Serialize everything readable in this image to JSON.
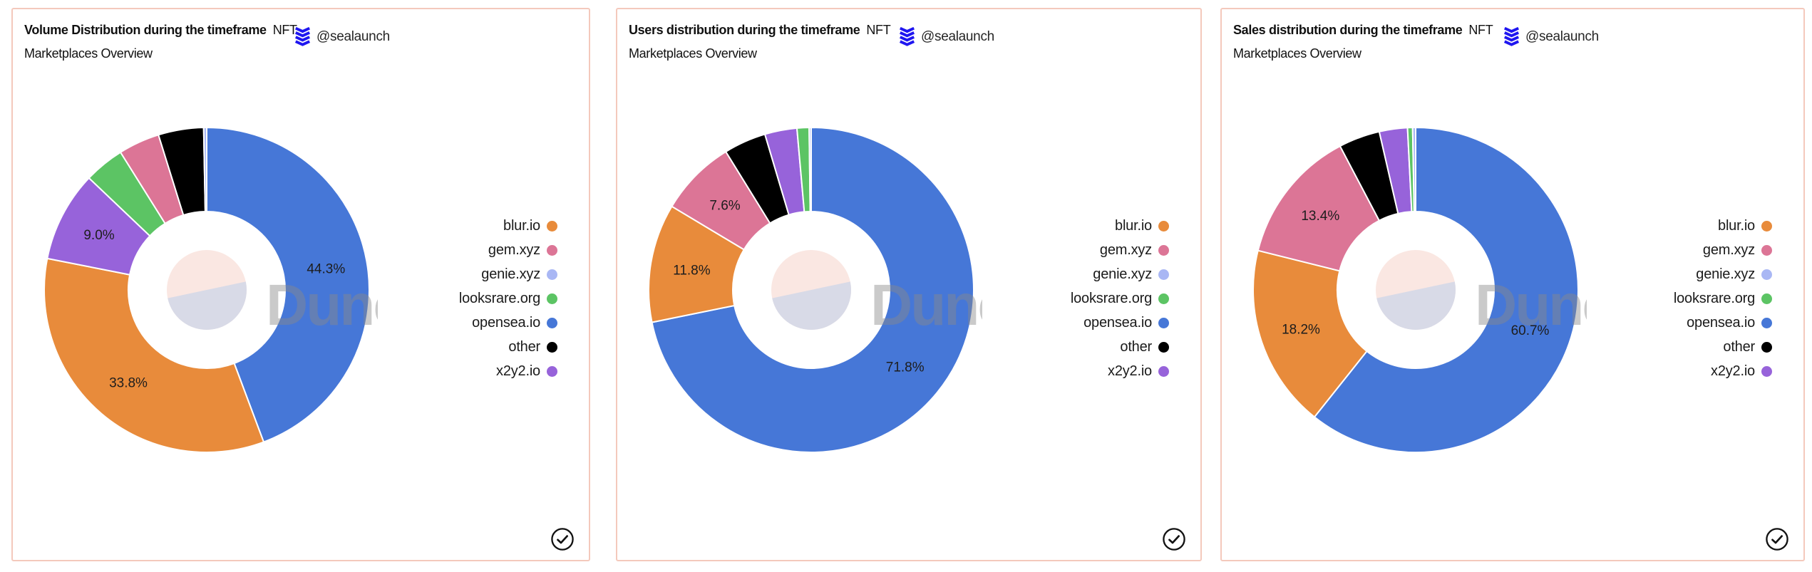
{
  "attribution": {
    "handle": "@sealaunch",
    "logo_icon": "sealaunch-logo",
    "logo_color": "#1f16f0"
  },
  "watermark": {
    "text": "Dune",
    "logo_icon": "dune-circle-logo",
    "circle_top_color": "#fae7e2",
    "circle_bottom_color": "#d8dae7",
    "text_color": "#8a8a8a"
  },
  "card_border_color": "#f4c9bc",
  "footer": {
    "check_icon": "check-circle"
  },
  "legend": [
    {
      "label": "blur.io",
      "color": "#e88b3b"
    },
    {
      "label": "gem.xyz",
      "color": "#dc7596"
    },
    {
      "label": "genie.xyz",
      "color": "#a9b7f4"
    },
    {
      "label": "looksrare.org",
      "color": "#5cc464"
    },
    {
      "label": "opensea.io",
      "color": "#4677d7"
    },
    {
      "label": "other",
      "color": "#000000"
    },
    {
      "label": "x2y2.io",
      "color": "#9763da"
    }
  ],
  "chart_data": [
    {
      "type": "pie",
      "donut": true,
      "title_bold": "Volume Distribution during the timeframe",
      "title_suffix": "NFT Marketplaces Overview",
      "unit": "%",
      "label_threshold_pct": 7,
      "visible_labels": [
        "44.3%",
        "33.8%",
        "9.0%"
      ],
      "slices": [
        {
          "label": "opensea.io",
          "value": 44.3,
          "color": "#4677d7"
        },
        {
          "label": "blur.io",
          "value": 33.8,
          "color": "#e88b3b"
        },
        {
          "label": "x2y2.io",
          "value": 9.0,
          "color": "#9763da"
        },
        {
          "label": "looksrare.org",
          "value": 4.0,
          "color": "#5cc464"
        },
        {
          "label": "gem.xyz",
          "value": 4.1,
          "color": "#dc7596"
        },
        {
          "label": "other",
          "value": 4.5,
          "color": "#000000"
        },
        {
          "label": "genie.xyz",
          "value": 0.3,
          "color": "#a9b7f4"
        }
      ]
    },
    {
      "type": "pie",
      "donut": true,
      "title_bold": "Users distribution during the timeframe",
      "title_suffix": "NFT Marketplaces Overview",
      "unit": "%",
      "label_threshold_pct": 7,
      "visible_labels": [
        "71.8%",
        "11.8%",
        "7.6%"
      ],
      "slices": [
        {
          "label": "opensea.io",
          "value": 71.8,
          "color": "#4677d7"
        },
        {
          "label": "blur.io",
          "value": 11.8,
          "color": "#e88b3b"
        },
        {
          "label": "gem.xyz",
          "value": 7.6,
          "color": "#dc7596"
        },
        {
          "label": "other",
          "value": 4.2,
          "color": "#000000"
        },
        {
          "label": "x2y2.io",
          "value": 3.2,
          "color": "#9763da"
        },
        {
          "label": "looksrare.org",
          "value": 1.2,
          "color": "#5cc464"
        },
        {
          "label": "genie.xyz",
          "value": 0.2,
          "color": "#a9b7f4"
        }
      ]
    },
    {
      "type": "pie",
      "donut": true,
      "title_bold": "Sales distribution during the timeframe",
      "title_suffix": "NFT Marketplaces Overview",
      "unit": "%",
      "label_threshold_pct": 7,
      "visible_labels": [
        "60.7%",
        "18.2%",
        "13.4%"
      ],
      "slices": [
        {
          "label": "opensea.io",
          "value": 60.7,
          "color": "#4677d7"
        },
        {
          "label": "blur.io",
          "value": 18.2,
          "color": "#e88b3b"
        },
        {
          "label": "gem.xyz",
          "value": 13.4,
          "color": "#dc7596"
        },
        {
          "label": "other",
          "value": 4.1,
          "color": "#000000"
        },
        {
          "label": "x2y2.io",
          "value": 2.8,
          "color": "#9763da"
        },
        {
          "label": "looksrare.org",
          "value": 0.5,
          "color": "#5cc464"
        },
        {
          "label": "genie.xyz",
          "value": 0.3,
          "color": "#a9b7f4"
        }
      ]
    }
  ]
}
